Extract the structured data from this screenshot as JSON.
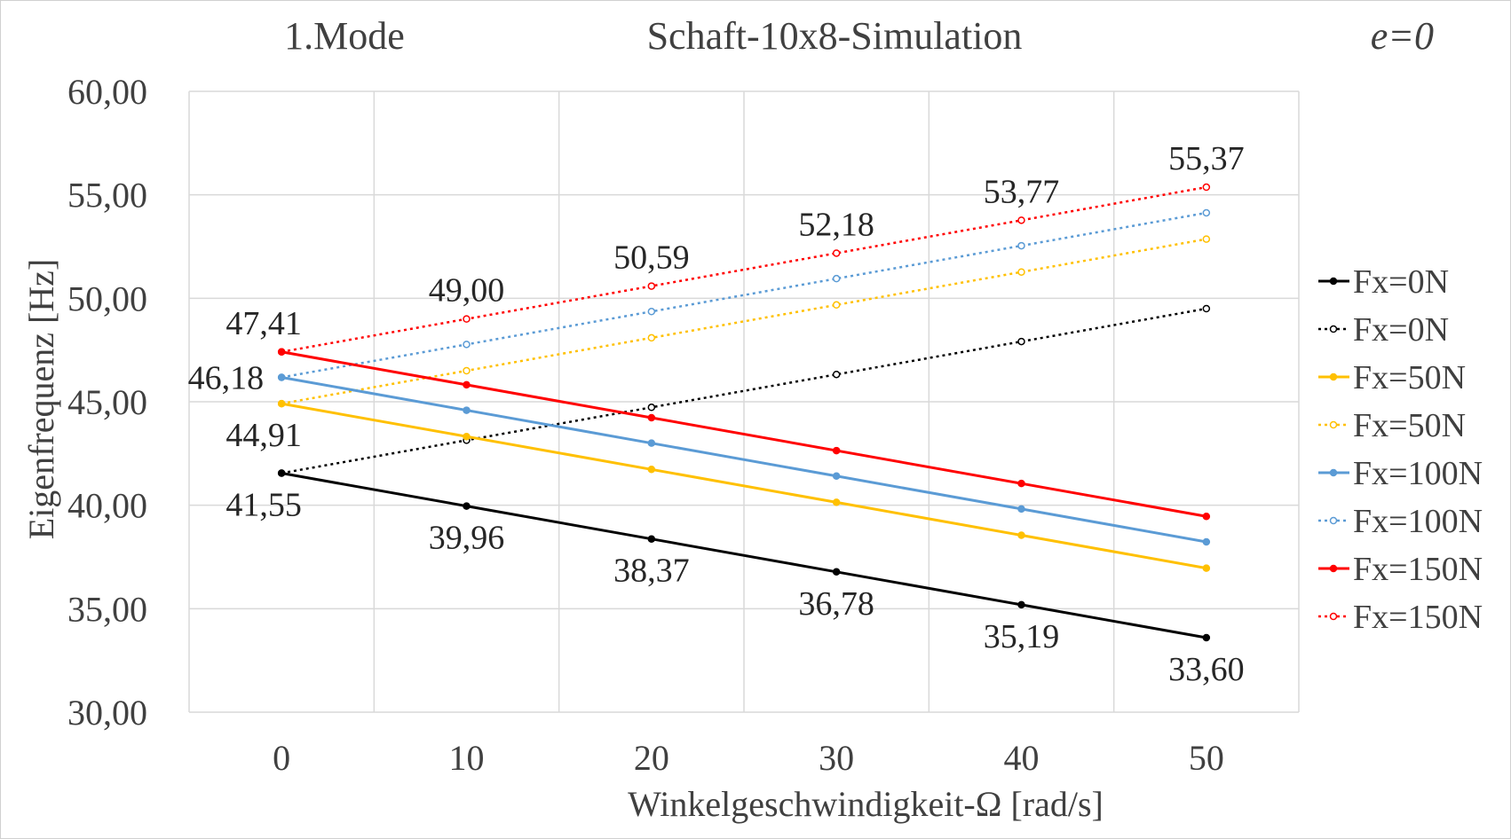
{
  "header": {
    "left": "1.Mode",
    "center": "Schaft-10x8-Simulation",
    "right": "e=0"
  },
  "chart_data": {
    "type": "line",
    "xlabel": "Winkelgeschwindigkeit-Ω   [rad/s]",
    "ylabel": "Eigenfrequenz  [Hz]",
    "x": [
      0,
      10,
      20,
      30,
      40,
      50
    ],
    "x_tick_labels": [
      "0",
      "10",
      "20",
      "30",
      "40",
      "50"
    ],
    "y_tick_labels": [
      "30,00",
      "35,00",
      "40,00",
      "45,00",
      "50,00",
      "55,00",
      "60,00"
    ],
    "ylim": [
      30,
      60
    ],
    "xlim": [
      -5,
      55
    ],
    "grid": true,
    "legend_position": "right",
    "series": [
      {
        "name": "Fx=0N",
        "style": "solid",
        "color": "#000000",
        "values": [
          41.55,
          39.96,
          38.37,
          36.78,
          35.19,
          33.6
        ]
      },
      {
        "name": "Fx=0N",
        "style": "dotted",
        "color": "#000000",
        "values": [
          41.55,
          43.14,
          44.73,
          46.32,
          47.91,
          49.5
        ]
      },
      {
        "name": "Fx=50N",
        "style": "solid",
        "color": "#ffc000",
        "values": [
          44.91,
          43.32,
          41.73,
          40.14,
          38.55,
          36.96
        ]
      },
      {
        "name": "Fx=50N",
        "style": "dotted",
        "color": "#ffc000",
        "values": [
          44.91,
          46.5,
          48.09,
          49.68,
          51.27,
          52.86
        ]
      },
      {
        "name": "Fx=100N",
        "style": "solid",
        "color": "#5b9bd5",
        "values": [
          46.18,
          44.59,
          43.0,
          41.41,
          39.82,
          38.23
        ]
      },
      {
        "name": "Fx=100N",
        "style": "dotted",
        "color": "#5b9bd5",
        "values": [
          46.18,
          47.77,
          49.36,
          50.95,
          52.54,
          54.13
        ]
      },
      {
        "name": "Fx=150N",
        "style": "solid",
        "color": "#ff0000",
        "values": [
          47.41,
          45.82,
          44.23,
          42.64,
          41.05,
          39.46
        ]
      },
      {
        "name": "Fx=150N",
        "style": "dotted",
        "color": "#ff0000",
        "values": [
          47.41,
          49.0,
          50.59,
          52.18,
          53.77,
          55.37
        ]
      }
    ],
    "data_labels": [
      {
        "text": "41,55",
        "x": 0,
        "y": 41.55,
        "position": "below"
      },
      {
        "text": "39,96",
        "x": 10,
        "y": 39.96,
        "position": "below"
      },
      {
        "text": "38,37",
        "x": 20,
        "y": 38.37,
        "position": "below"
      },
      {
        "text": "36,78",
        "x": 30,
        "y": 36.78,
        "position": "below"
      },
      {
        "text": "35,19",
        "x": 40,
        "y": 35.19,
        "position": "below"
      },
      {
        "text": "33,60",
        "x": 50,
        "y": 33.6,
        "position": "below"
      },
      {
        "text": "44,91",
        "x": 0,
        "y": 44.91,
        "position": "below"
      },
      {
        "text": "46,18",
        "x": 0,
        "y": 46.18,
        "position": "left"
      },
      {
        "text": "47,41",
        "x": 0,
        "y": 47.41,
        "position": "above"
      },
      {
        "text": "49,00",
        "x": 10,
        "y": 49.0,
        "position": "above"
      },
      {
        "text": "50,59",
        "x": 20,
        "y": 50.59,
        "position": "above"
      },
      {
        "text": "52,18",
        "x": 30,
        "y": 52.18,
        "position": "above"
      },
      {
        "text": "53,77",
        "x": 40,
        "y": 53.77,
        "position": "above"
      },
      {
        "text": "55,37",
        "x": 50,
        "y": 55.37,
        "position": "above"
      }
    ]
  }
}
